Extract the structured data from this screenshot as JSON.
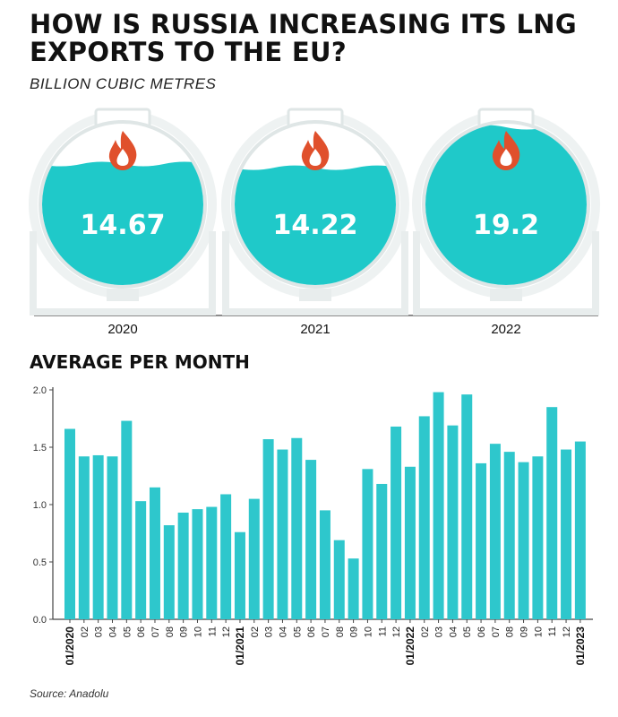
{
  "title": "HOW IS RUSSIA INCREASING ITS LNG EXPORTS TO THE EU?",
  "subtitle": "BILLION CUBIC METRES",
  "section_title": "AVERAGE PER MONTH",
  "source": "Source: Anadolu",
  "colors": {
    "liquid": "#1fc9c9",
    "tank_outline": "#dfe6e6",
    "flame": "#e0502c",
    "bar": "#2ec7cc",
    "axis": "#444444"
  },
  "icons": {
    "tank_flame": "flame-icon"
  },
  "chart_data": [
    {
      "type": "tank",
      "categories": [
        "2020",
        "2021",
        "2022"
      ],
      "value_labels": [
        "14.67",
        "14.22",
        "19.2"
      ],
      "values": [
        14.67,
        14.22,
        19.2
      ]
    },
    {
      "type": "bar",
      "title": "AVERAGE PER MONTH",
      "ylim": [
        0,
        2.0
      ],
      "yticks": [
        "0.0",
        "0.5",
        "1.0",
        "1.5",
        "2.0"
      ],
      "x_tick_labels": [
        "01/2020",
        "02",
        "03",
        "04",
        "05",
        "06",
        "07",
        "08",
        "09",
        "10",
        "11",
        "12",
        "01/2021",
        "02",
        "03",
        "04",
        "05",
        "06",
        "07",
        "08",
        "09",
        "10",
        "11",
        "12",
        "01/2022",
        "02",
        "03",
        "04",
        "05",
        "06",
        "07",
        "08",
        "09",
        "10",
        "11",
        "12",
        "01/2023"
      ],
      "values": [
        1.66,
        1.42,
        1.43,
        1.42,
        1.73,
        1.03,
        1.15,
        0.82,
        0.93,
        0.96,
        0.98,
        1.09,
        0.76,
        1.05,
        1.57,
        1.48,
        1.58,
        1.39,
        0.95,
        0.69,
        0.53,
        1.31,
        1.18,
        1.68,
        1.33,
        1.77,
        1.98,
        1.69,
        1.96,
        1.36,
        1.53,
        1.46,
        1.37,
        1.42,
        1.85,
        1.48,
        1.55
      ]
    }
  ]
}
